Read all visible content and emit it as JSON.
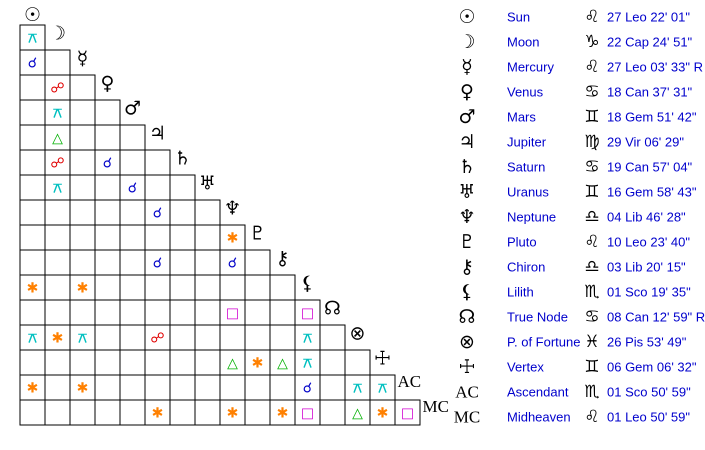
{
  "planets": [
    {
      "glyph": "☉",
      "name": "Sun",
      "sign": "♌",
      "position": "27 Leo 22' 01\""
    },
    {
      "glyph": "☽",
      "name": "Moon",
      "sign": "♑",
      "position": "22 Cap 24' 51\""
    },
    {
      "glyph": "☿",
      "name": "Mercury",
      "sign": "♌",
      "position": "27 Leo 03' 33\" R"
    },
    {
      "glyph": "♀",
      "name": "Venus",
      "sign": "♋",
      "position": "18 Can 37' 31\""
    },
    {
      "glyph": "♂",
      "name": "Mars",
      "sign": "♊",
      "position": "18 Gem 51' 42\""
    },
    {
      "glyph": "♃",
      "name": "Jupiter",
      "sign": "♍",
      "position": "29 Vir 06' 29\""
    },
    {
      "glyph": "♄",
      "name": "Saturn",
      "sign": "♋",
      "position": "19 Can 57' 04\""
    },
    {
      "glyph": "♅",
      "name": "Uranus",
      "sign": "♊",
      "position": "16 Gem 58' 43\""
    },
    {
      "glyph": "♆",
      "name": "Neptune",
      "sign": "♎",
      "position": "04 Lib 46' 28\""
    },
    {
      "glyph": "♇",
      "name": "Pluto",
      "sign": "♌",
      "position": "10 Leo 23' 40\""
    },
    {
      "glyph": "⚷",
      "name": "Chiron",
      "sign": "♎",
      "position": "03 Lib 20' 15\""
    },
    {
      "glyph": "⚸",
      "name": "Lilith",
      "sign": "♏",
      "position": "01 Sco 19' 35\""
    },
    {
      "glyph": "☊",
      "name": "True Node",
      "sign": "♋",
      "position": "08 Can 12' 59\" R"
    },
    {
      "glyph": "⊗",
      "name": "P. of Fortune",
      "sign": "♓",
      "position": "26 Pis 53' 49\""
    },
    {
      "glyph": "☩",
      "name": "Vertex",
      "sign": "♊",
      "position": "06 Gem 06' 32\""
    },
    {
      "glyph": "AC",
      "name": "Ascendant",
      "sign": "♏",
      "position": "01 Sco 50' 59\""
    },
    {
      "glyph": "MC",
      "name": "Midheaven",
      "sign": "♌",
      "position": "01 Leo 50' 59\""
    }
  ],
  "grid": {
    "aspect_colors": {
      "☌": "#0000c8",
      "☍": "#e00000",
      "△": "#00b000",
      "□": "#d000d0",
      "✱": "#ff8000",
      "⚻": "#00c0c0"
    },
    "rows": [
      [
        "⚻"
      ],
      [
        "☌",
        null
      ],
      [
        null,
        "☍",
        null
      ],
      [
        null,
        "⚻",
        null,
        null
      ],
      [
        null,
        "△",
        null,
        null,
        null
      ],
      [
        null,
        "☍",
        null,
        "☌",
        null,
        null
      ],
      [
        null,
        "⚻",
        null,
        null,
        "☌",
        null,
        null
      ],
      [
        null,
        null,
        null,
        null,
        null,
        "☌",
        null,
        null
      ],
      [
        null,
        null,
        null,
        null,
        null,
        null,
        null,
        null,
        "✱"
      ],
      [
        null,
        null,
        null,
        null,
        null,
        "☌",
        null,
        null,
        "☌",
        null
      ],
      [
        "✱",
        null,
        "✱",
        null,
        null,
        null,
        null,
        null,
        null,
        null,
        null
      ],
      [
        null,
        null,
        null,
        null,
        null,
        null,
        null,
        null,
        "□",
        null,
        null,
        "□"
      ],
      [
        "⚻",
        "✱",
        "⚻",
        null,
        null,
        "☍",
        null,
        null,
        null,
        null,
        null,
        "⚻",
        null
      ],
      [
        null,
        null,
        null,
        null,
        null,
        null,
        null,
        null,
        "△",
        "✱",
        "△",
        "⚻",
        null,
        null
      ],
      [
        "✱",
        null,
        "✱",
        null,
        null,
        null,
        null,
        null,
        null,
        null,
        null,
        "☌",
        null,
        "⚻",
        "⚻"
      ],
      [
        null,
        null,
        null,
        null,
        null,
        "✱",
        null,
        null,
        "✱",
        null,
        "✱",
        "□",
        null,
        "△",
        "✱",
        "□"
      ]
    ]
  }
}
